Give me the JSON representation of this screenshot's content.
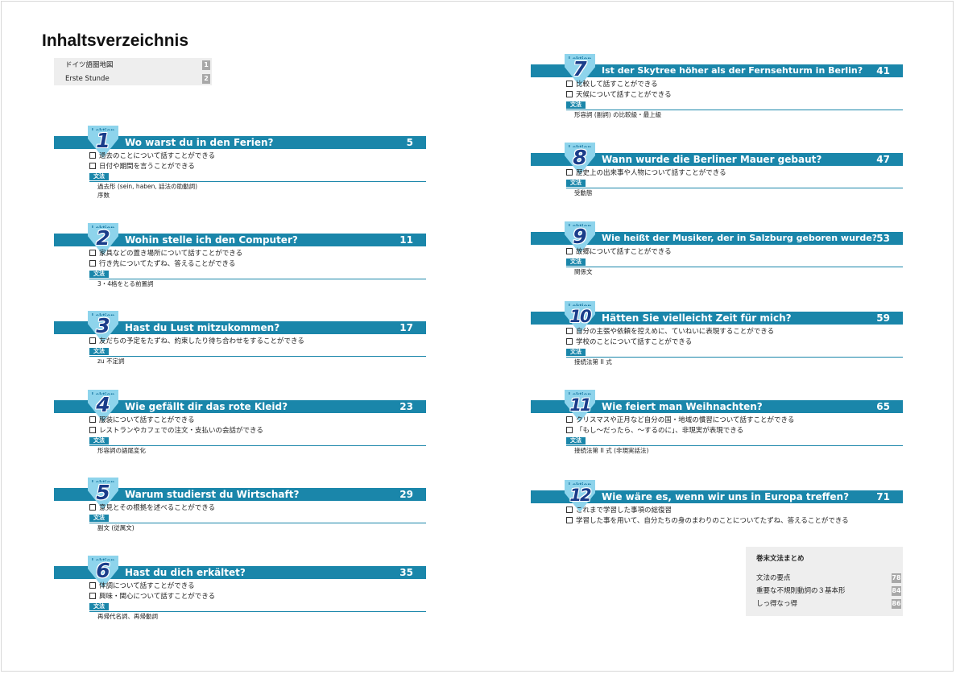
{
  "title": "Inhaltsverzeichnis",
  "lektion_label": "Lektion",
  "grammar_label": "文法",
  "intro": [
    {
      "label": "ドイツ語圏地図",
      "page": "1"
    },
    {
      "label": "Erste Stunde",
      "page": "2"
    }
  ],
  "lessons": [
    {
      "num": "1",
      "title": "Wo warst du in den Ferien?",
      "page": "5",
      "items": [
        "過去のことについて話すことができる",
        "日付や期間を言うことができる"
      ],
      "grammar": [
        "過去形 (sein, haben, 話法の助動詞)",
        "序数"
      ]
    },
    {
      "num": "2",
      "title": "Wohin stelle ich den Computer?",
      "page": "11",
      "items": [
        "家具などの置き場所について話すことができる",
        "行き先についてたずね、答えることができる"
      ],
      "grammar": [
        "3・4格をとる前置詞"
      ]
    },
    {
      "num": "3",
      "title": "Hast du Lust mitzukommen?",
      "page": "17",
      "items": [
        "友だちの予定をたずね、約束したり待ち合わせをすることができる"
      ],
      "grammar": [
        "zu 不定詞"
      ]
    },
    {
      "num": "4",
      "title": "Wie gefällt dir das rote Kleid?",
      "page": "23",
      "items": [
        "服装について話すことができる",
        "レストランやカフェでの注文・支払いの会話ができる"
      ],
      "grammar": [
        "形容詞の語尾変化"
      ]
    },
    {
      "num": "5",
      "title": "Warum studierst du Wirtschaft?",
      "page": "29",
      "items": [
        "意見とその根拠を述べることができる"
      ],
      "grammar": [
        "副文 (従属文)"
      ]
    },
    {
      "num": "6",
      "title": "Hast du dich erkältet?",
      "page": "35",
      "items": [
        "体調について話すことができる",
        "興味・関心について話すことができる"
      ],
      "grammar": [
        "再帰代名詞、再帰動詞"
      ]
    },
    {
      "num": "7",
      "title": "Ist der Skytree höher als der Fernsehturm in Berlin?",
      "page": "41",
      "items": [
        "比較して話すことができる",
        "天候について話すことができる"
      ],
      "grammar": [
        "形容詞 (副詞) の比較級・最上級"
      ]
    },
    {
      "num": "8",
      "title": "Wann wurde die Berliner Mauer gebaut?",
      "page": "47",
      "items": [
        "歴史上の出来事や人物について話すことができる"
      ],
      "grammar": [
        "受動態"
      ]
    },
    {
      "num": "9",
      "title": "Wie heißt der Musiker, der in Salzburg geboren wurde?",
      "page": "53",
      "items": [
        "故郷について話すことができる"
      ],
      "grammar": [
        "関係文"
      ]
    },
    {
      "num": "10",
      "title": "Hätten Sie vielleicht Zeit für mich?",
      "page": "59",
      "items": [
        "自分の主張や依頼を控えめに、ていねいに表現することができる",
        "学校のことについて話すことができる"
      ],
      "grammar": [
        "接続法第 II 式"
      ]
    },
    {
      "num": "11",
      "title": "Wie feiert man Weihnachten?",
      "page": "65",
      "items": [
        "クリスマスや正月など自分の国・地域の慣習について話すことができる",
        "「もし～だったら、～するのに」、非現実が表現できる"
      ],
      "grammar": [
        "接続法第 II 式 (非現実話法)"
      ]
    },
    {
      "num": "12",
      "title": "Wie wäre es, wenn wir uns in Europa treffen?",
      "page": "71",
      "items": [
        "これまで学習した事項の総復習",
        "学習した事を用いて、自分たちの身のまわりのことについてたずね、答えることができる"
      ],
      "grammar": []
    }
  ],
  "summary": {
    "title": "巻末文法まとめ",
    "items": [
      {
        "label": "文法の要点",
        "page": "78"
      },
      {
        "label": "重要な不規則動詞の３基本形",
        "page": "84"
      },
      {
        "label": "しっ得なっ得",
        "page": "86"
      }
    ]
  },
  "colors": {
    "accent": "#1a86aa",
    "tab": "#8ed4ec",
    "numeral": "#1a3d8a",
    "panel": "#eeeeee",
    "page_badge": "#a8a8a8"
  }
}
